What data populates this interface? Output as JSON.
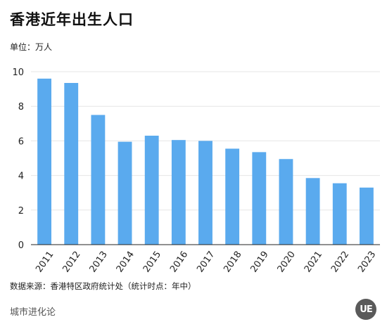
{
  "header": {
    "title": "香港近年出生人口",
    "unit": "单位：万人"
  },
  "footer": {
    "source": "数据来源：香港特区政府统计处（统计时点：年中）",
    "brand": "城市进化论",
    "logo_text": "UE"
  },
  "colors": {
    "bar": "#5aaaee"
  },
  "chart_data": {
    "type": "bar",
    "title": "香港近年出生人口",
    "ylabel": "单位：万人",
    "categories": [
      "2011",
      "2012",
      "2013",
      "2014",
      "2015",
      "2016",
      "2017",
      "2018",
      "2019",
      "2020",
      "2021",
      "2022",
      "2023"
    ],
    "values": [
      9.6,
      9.35,
      7.5,
      5.95,
      6.3,
      6.05,
      6.0,
      5.55,
      5.35,
      4.95,
      3.85,
      3.55,
      3.3
    ],
    "ylim": [
      0,
      10
    ],
    "yticks": [
      0,
      2,
      4,
      6,
      8,
      10
    ],
    "grid": true
  }
}
